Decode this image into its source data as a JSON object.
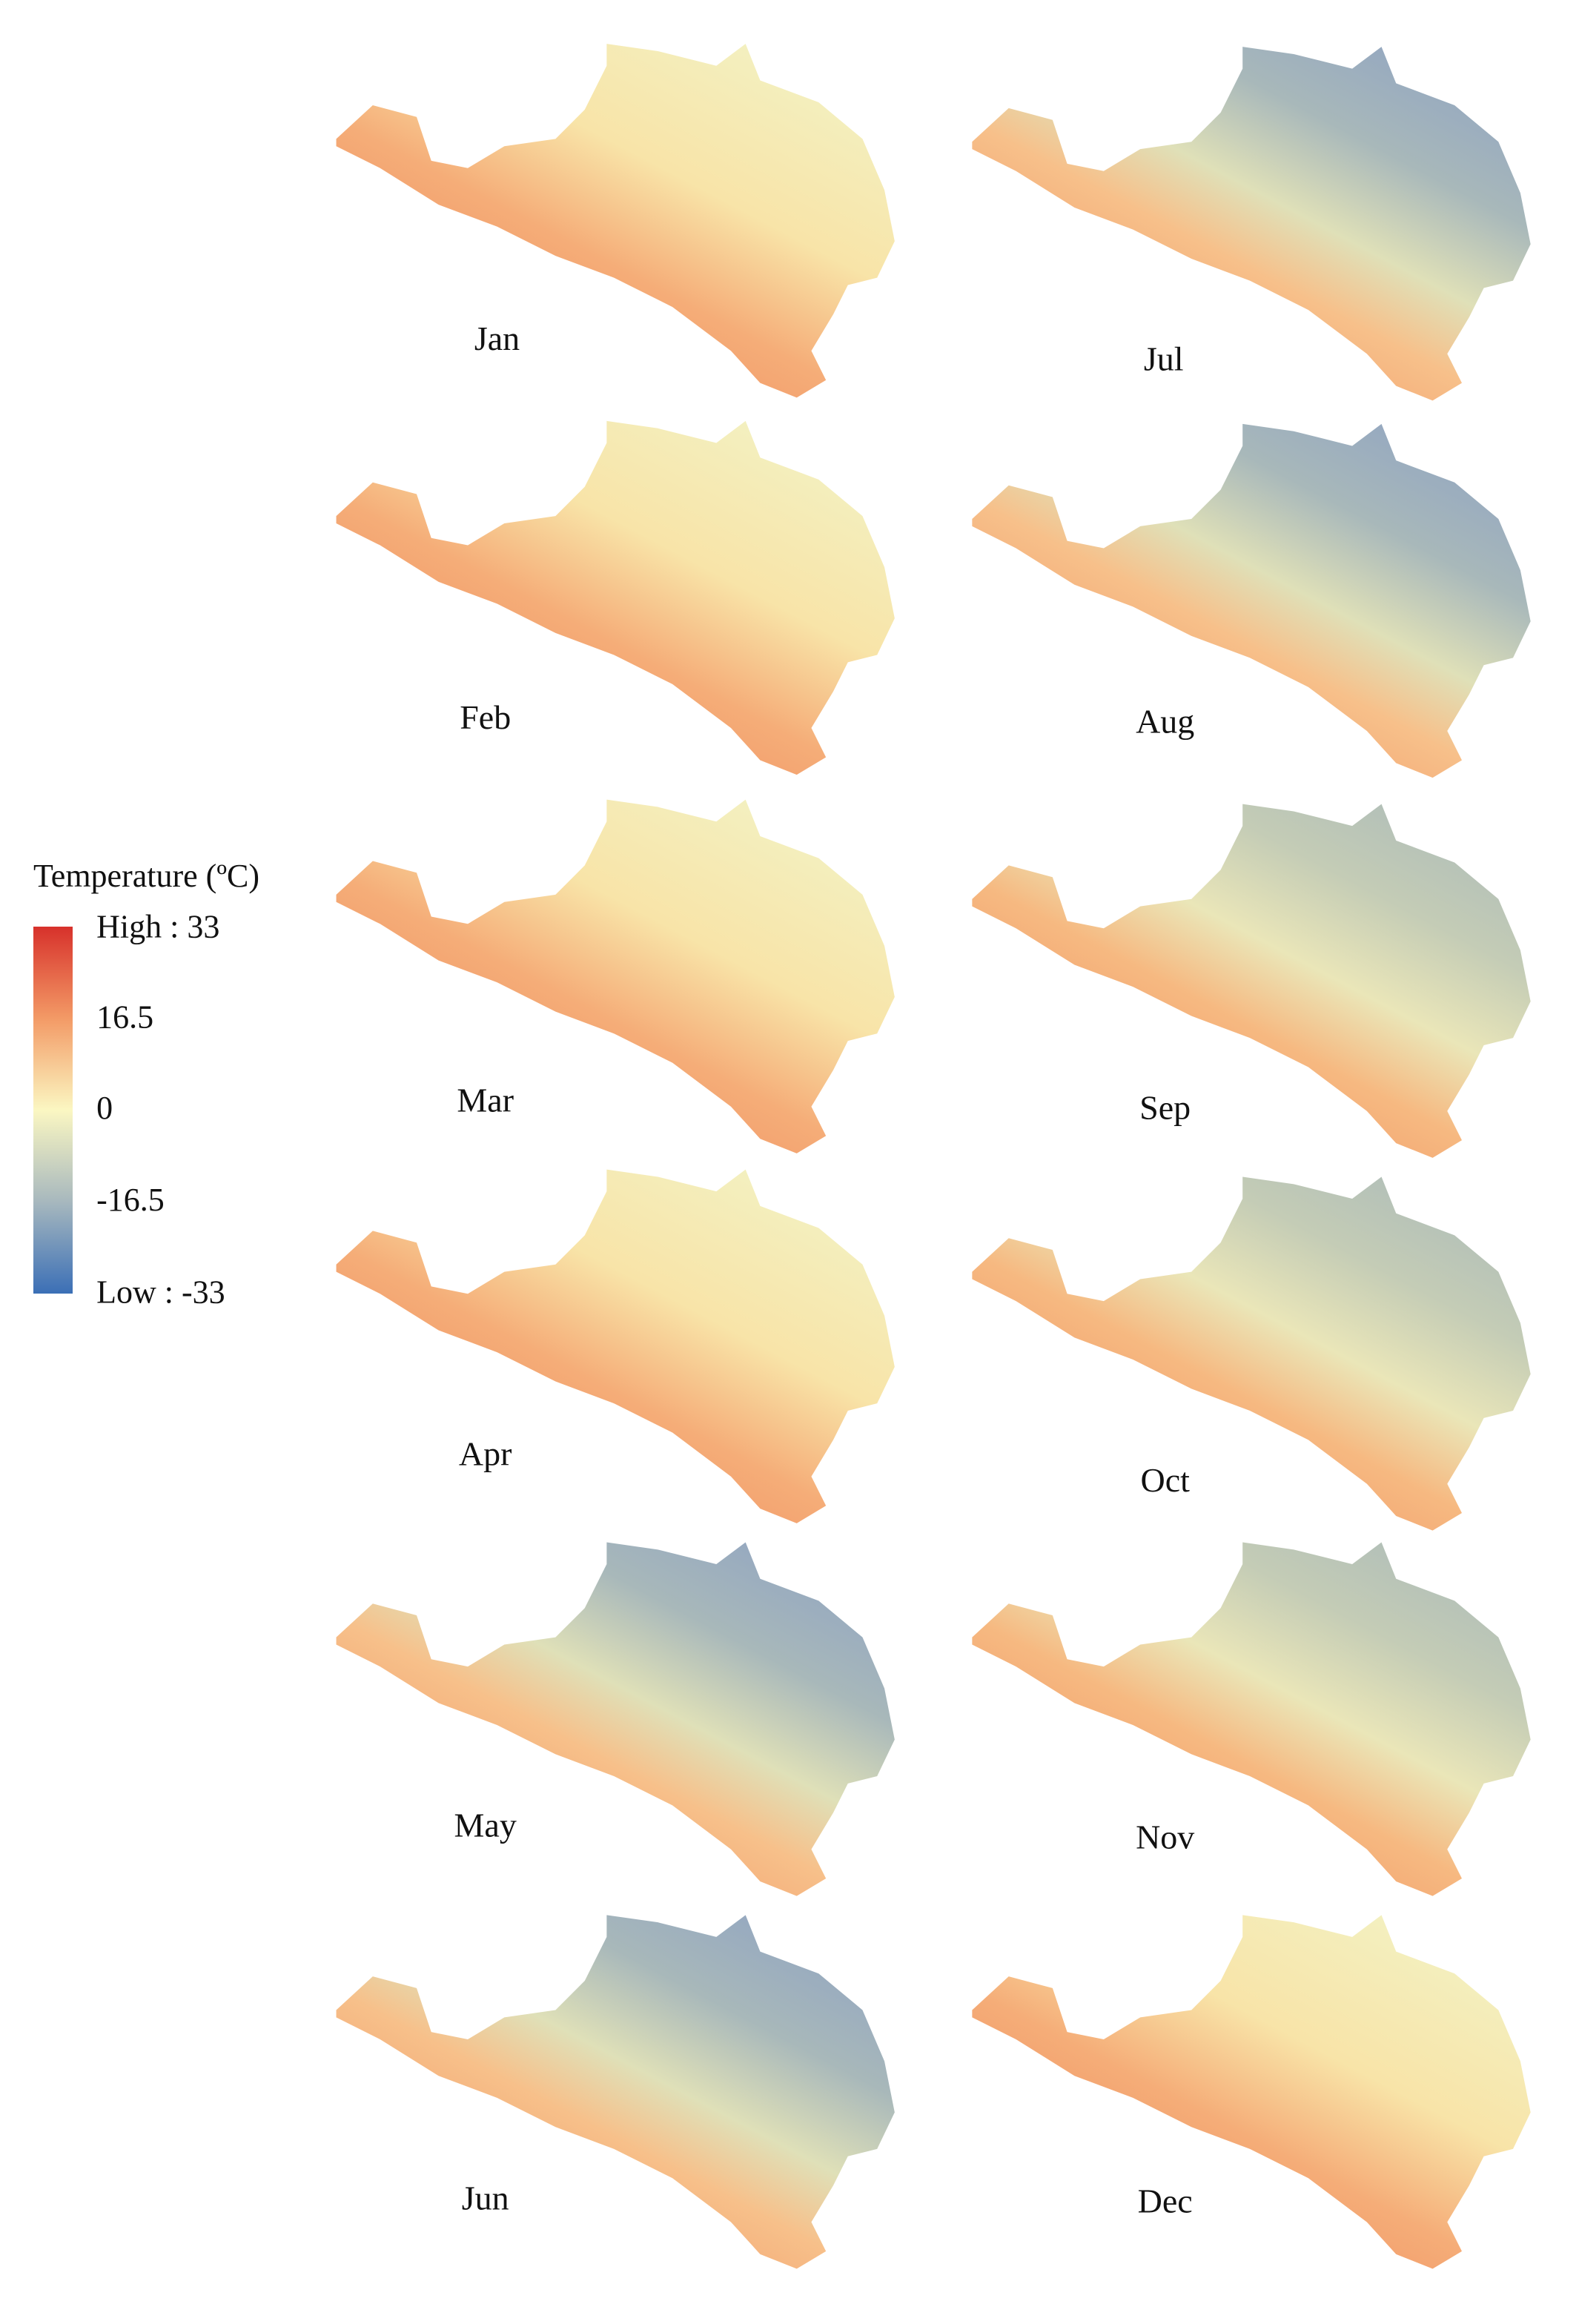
{
  "legend": {
    "title": "Temperature (ºC)",
    "labels": [
      "High : 33",
      "16.5",
      "0",
      "-16.5",
      "Low : -33"
    ]
  },
  "maps": [
    {
      "label": "Jan"
    },
    {
      "label": "Feb"
    },
    {
      "label": "Mar"
    },
    {
      "label": "Apr"
    },
    {
      "label": "May"
    },
    {
      "label": "Jun"
    },
    {
      "label": "Jul"
    },
    {
      "label": "Aug"
    },
    {
      "label": "Sep"
    },
    {
      "label": "Oct"
    },
    {
      "label": "Nov"
    },
    {
      "label": "Dec"
    }
  ]
}
